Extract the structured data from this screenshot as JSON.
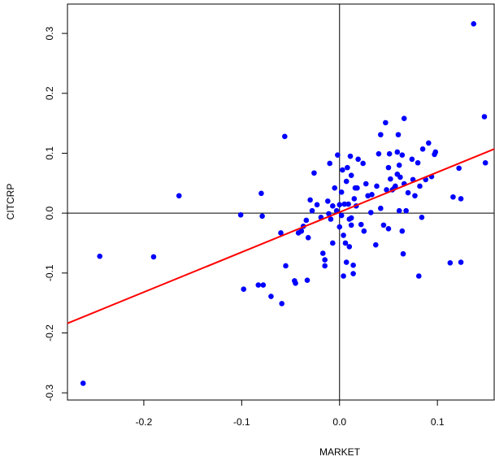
{
  "chart_data": {
    "type": "scatter",
    "x_label": "MARKET",
    "y_label": "CITCRP",
    "xlim": [
      -0.278,
      0.158
    ],
    "ylim": [
      -0.312,
      0.349
    ],
    "xticks": [
      -0.2,
      -0.1,
      {
        "value": 0,
        "label": "0.0"
      },
      0.1
    ],
    "yticks": [
      -0.3,
      -0.2,
      -0.1,
      {
        "value": 0,
        "label": "0.0"
      },
      0.1,
      0.2,
      0.3
    ],
    "color": "#0000ff",
    "reference_lines": {
      "x": 0,
      "y": 0
    },
    "fit": {
      "x": [
        -0.278,
        0.158
      ],
      "y": [
        -0.184,
        0.107
      ],
      "color": "#ff0000"
    },
    "x": [
      0.137,
      0.148,
      0.149,
      -0.262,
      -0.245,
      -0.19,
      -0.164,
      -0.101,
      -0.098,
      -0.083,
      -0.078,
      -0.08,
      -0.079,
      -0.07,
      -0.06,
      -0.059,
      -0.056,
      -0.055,
      -0.046,
      -0.045,
      -0.042,
      -0.039,
      -0.037,
      -0.034,
      -0.032,
      -0.033,
      -0.03,
      -0.028,
      -0.026,
      -0.023,
      -0.019,
      -0.017,
      -0.015,
      -0.015,
      -0.012,
      -0.011,
      -0.01,
      -0.009,
      -0.007,
      -0.007,
      -0.005,
      -0.003,
      -0.002,
      0.0,
      0.0,
      0.002,
      0.002,
      0.003,
      0.004,
      0.005,
      0.006,
      0.007,
      0.004,
      0.007,
      0.008,
      0.009,
      0.01,
      0.01,
      0.011,
      0.012,
      0.012,
      0.014,
      0.012,
      0.014,
      0.015,
      0.016,
      0.017,
      0.019,
      0.018,
      0.022,
      0.024,
      0.025,
      0.027,
      0.029,
      0.032,
      0.033,
      0.037,
      0.038,
      0.04,
      0.042,
      0.042,
      0.045,
      0.047,
      0.048,
      0.05,
      0.05,
      0.051,
      0.052,
      0.054,
      0.056,
      0.057,
      0.059,
      0.059,
      0.06,
      0.061,
      0.061,
      0.062,
      0.064,
      0.064,
      0.065,
      0.066,
      0.066,
      0.068,
      0.07,
      0.074,
      0.075,
      0.077,
      0.08,
      0.081,
      0.082,
      0.084,
      0.085,
      0.088,
      0.091,
      0.094,
      0.097,
      0.098,
      0.113,
      0.116,
      0.122,
      0.124,
      0.124
    ],
    "values": [
      0.316,
      0.161,
      0.084,
      -0.284,
      -0.072,
      -0.073,
      0.029,
      -0.003,
      -0.127,
      -0.12,
      -0.12,
      0.033,
      -0.005,
      -0.139,
      -0.033,
      -0.151,
      0.128,
      -0.088,
      -0.113,
      -0.117,
      -0.033,
      -0.03,
      -0.022,
      -0.012,
      -0.041,
      -0.112,
      0.022,
      0.004,
      0.067,
      0.014,
      -0.007,
      -0.067,
      -0.078,
      -0.088,
      0.02,
      -0.001,
      0.083,
      -0.01,
      -0.05,
      0.012,
      0.042,
      0.004,
      0.097,
      -0.023,
      0.014,
      -0.004,
      0.035,
      0.072,
      -0.037,
      0.015,
      -0.05,
      0.053,
      -0.105,
      -0.082,
      0.076,
      0.015,
      -0.01,
      -0.056,
      0.095,
      -0.008,
      -0.02,
      -0.087,
      0.063,
      -0.101,
      0.024,
      0.042,
      0.012,
      0.09,
      0.042,
      -0.019,
      0.083,
      -0.03,
      0.049,
      0.029,
      0.001,
      0.031,
      -0.053,
      0.045,
      0.099,
      0.131,
      0.008,
      -0.02,
      0.151,
      0.039,
      -0.026,
      0.076,
      0.099,
      0.057,
      0.039,
      0.042,
      0.045,
      0.102,
      0.065,
      0.131,
      0.004,
      0.08,
      0.06,
      0.097,
      -0.03,
      -0.068,
      0.049,
      0.158,
      0.004,
      0.034,
      0.09,
      0.056,
      0.029,
      0.084,
      -0.105,
      0.045,
      -0.007,
      0.107,
      0.056,
      0.117,
      0.061,
      0.098,
      0.102,
      -0.083,
      0.027,
      0.075,
      0.024,
      -0.082
    ]
  }
}
